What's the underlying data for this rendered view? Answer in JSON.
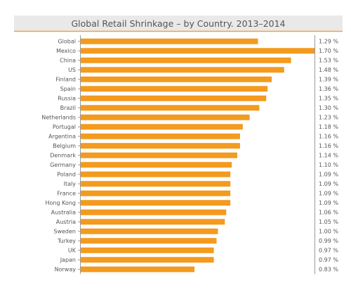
{
  "chart_data": {
    "type": "bar",
    "orientation": "horizontal",
    "title": "Global Retail Shrinkage – by Country. 2013–2014",
    "categories": [
      "Global",
      "Mexico",
      "China",
      "US",
      "Finland",
      "Spain",
      "Russia",
      "Brazil",
      "Netherlands",
      "Portugal",
      "Argentina",
      "Belgium",
      "Denmark",
      "Germany",
      "Poland",
      "Italy",
      "France",
      "Hong Kong",
      "Australia",
      "Austria",
      "Sweden",
      "Turkey",
      "UK",
      "Japan",
      "Norway"
    ],
    "values": [
      1.29,
      1.7,
      1.53,
      1.48,
      1.39,
      1.36,
      1.35,
      1.3,
      1.23,
      1.18,
      1.16,
      1.16,
      1.14,
      1.1,
      1.09,
      1.09,
      1.09,
      1.09,
      1.06,
      1.05,
      1.0,
      0.99,
      0.97,
      0.97,
      0.83
    ],
    "value_labels": [
      "1.29 %",
      "1.70 %",
      "1.53 %",
      "1.48 %",
      "1.39 %",
      "1.36 %",
      "1.35 %",
      "1.30 %",
      "1.23 %",
      "1.18 %",
      "1.16 %",
      "1.16 %",
      "1.14 %",
      "1.10 %",
      "1.09 %",
      "1.09 %",
      "1.09 %",
      "1.09 %",
      "1.06 %",
      "1.05 %",
      "1.00 %",
      "0.99 %",
      "0.97 %",
      "0.97 %",
      "0.83 %"
    ],
    "xlim": [
      0,
      1.7
    ],
    "xlabel": "",
    "ylabel": "",
    "grid": false,
    "legend": "none",
    "colors": {
      "bar": "#F39A1F",
      "header_bg": "#E9E9E9",
      "header_rule": "#F0A33A",
      "text": "#555555",
      "axis": "#9A9A9A"
    }
  }
}
